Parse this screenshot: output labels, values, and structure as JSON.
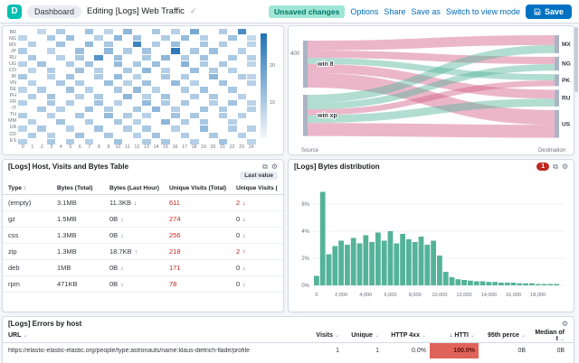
{
  "header": {
    "space_initial": "D",
    "breadcrumb": "Dashboard",
    "title": "Editing [Logs] Web Traffic",
    "badge": "Unsaved changes",
    "actions": [
      "Options",
      "Share",
      "Save as",
      "Switch to view mode"
    ],
    "save_label": "Save"
  },
  "panels": {
    "host_table": {
      "title": "[Logs] Host, Visits and Bytes Table",
      "tag": "Last value",
      "columns": [
        "Type",
        "Bytes (Total)",
        "Bytes (Last Hour)",
        "Unique Visits (Total)",
        "Unique Visits (Last Hour)"
      ],
      "rows": [
        {
          "type": "(empty)",
          "bytes_total": "3.1MB",
          "bytes_last_hour": "11.3KB",
          "bytes_trend": "down",
          "unique_total": "611",
          "unique_last_hour": "2",
          "unique_trend": "down"
        },
        {
          "type": "gz",
          "bytes_total": "1.5MB",
          "bytes_last_hour": "0B",
          "bytes_trend": "down",
          "unique_total": "274",
          "unique_last_hour": "0",
          "unique_trend": "down"
        },
        {
          "type": "css",
          "bytes_total": "1.3MB",
          "bytes_last_hour": "0B",
          "bytes_trend": "down",
          "unique_total": "256",
          "unique_last_hour": "0",
          "unique_trend": "down"
        },
        {
          "type": "zip",
          "bytes_total": "1.3MB",
          "bytes_last_hour": "18.7KB",
          "bytes_trend": "up",
          "unique_total": "218",
          "unique_last_hour": "2",
          "unique_trend": "up"
        },
        {
          "type": "deb",
          "bytes_total": "1MB",
          "bytes_last_hour": "0B",
          "bytes_trend": "down",
          "unique_total": "171",
          "unique_last_hour": "0",
          "unique_trend": "down"
        },
        {
          "type": "rpm",
          "bytes_total": "471KB",
          "bytes_last_hour": "0B",
          "bytes_trend": "down",
          "unique_total": "78",
          "unique_last_hour": "0",
          "unique_trend": "down"
        }
      ]
    },
    "bytes_distribution": {
      "title": "[Logs] Bytes distribution",
      "badge": "1"
    },
    "errors_by_host": {
      "title": "[Logs] Errors by host",
      "columns": [
        "URL",
        "Visits",
        "Unique",
        "HTTP 4xx",
        "HTTI",
        "95th perce",
        "Median of t"
      ],
      "sorted_column": "HTTI",
      "rows": [
        [
          "https://elastic-elastic-elastic.org/people/type:astronauts/name:klaus-dietrich-flade/profile",
          "1",
          "1",
          "0.0%",
          "100.0%",
          "0B",
          "0B"
        ]
      ]
    }
  },
  "chart_data": [
    {
      "type": "heatmap",
      "x": [
        0,
        1,
        2,
        3,
        4,
        5,
        6,
        7,
        8,
        9,
        10,
        11,
        12,
        13,
        14,
        15,
        16,
        17,
        18,
        19,
        20,
        21,
        22,
        23,
        24
      ],
      "categories": [
        "BR",
        "NG",
        "MX",
        "JP",
        "RU",
        "UG",
        "CO",
        "IR",
        "VN",
        "DE",
        "PH",
        "FR",
        "IT",
        "TH",
        "MM",
        "UA",
        "CD",
        "ES"
      ],
      "max": 28,
      "legend_ticks": [
        20,
        10
      ],
      "values": [
        [
          0,
          0,
          4,
          0,
          7,
          0,
          0,
          9,
          0,
          5,
          0,
          12,
          0,
          0,
          8,
          0,
          6,
          0,
          15,
          0,
          0,
          7,
          0,
          22,
          0
        ],
        [
          5,
          0,
          0,
          8,
          0,
          10,
          0,
          0,
          6,
          0,
          12,
          0,
          9,
          0,
          0,
          7,
          0,
          11,
          0,
          6,
          0,
          0,
          9,
          0,
          4
        ],
        [
          0,
          6,
          0,
          0,
          9,
          0,
          0,
          11,
          0,
          8,
          0,
          0,
          24,
          0,
          7,
          0,
          10,
          0,
          0,
          8,
          0,
          7,
          0,
          0,
          5
        ],
        [
          7,
          0,
          0,
          5,
          0,
          0,
          10,
          0,
          0,
          12,
          0,
          7,
          0,
          9,
          0,
          0,
          26,
          0,
          8,
          0,
          10,
          0,
          0,
          6,
          0
        ],
        [
          0,
          8,
          0,
          0,
          6,
          0,
          8,
          0,
          20,
          0,
          10,
          0,
          0,
          8,
          0,
          12,
          0,
          7,
          0,
          9,
          0,
          0,
          8,
          0,
          6
        ],
        [
          6,
          0,
          9,
          0,
          0,
          7,
          0,
          9,
          0,
          0,
          11,
          0,
          8,
          0,
          10,
          0,
          0,
          13,
          0,
          7,
          0,
          8,
          0,
          0,
          5
        ],
        [
          0,
          5,
          0,
          7,
          0,
          0,
          9,
          0,
          6,
          0,
          0,
          8,
          0,
          12,
          0,
          6,
          0,
          0,
          10,
          0,
          7,
          0,
          6,
          0,
          0
        ],
        [
          8,
          0,
          0,
          6,
          0,
          9,
          0,
          0,
          7,
          0,
          11,
          0,
          6,
          0,
          0,
          8,
          0,
          7,
          0,
          0,
          12,
          0,
          0,
          7,
          5
        ],
        [
          0,
          6,
          0,
          0,
          8,
          0,
          7,
          0,
          0,
          10,
          0,
          6,
          0,
          9,
          0,
          0,
          11,
          0,
          6,
          0,
          0,
          9,
          0,
          0,
          6
        ],
        [
          5,
          0,
          7,
          0,
          0,
          9,
          0,
          6,
          0,
          0,
          8,
          0,
          11,
          0,
          6,
          0,
          0,
          7,
          0,
          9,
          0,
          0,
          8,
          0,
          0
        ],
        [
          0,
          7,
          0,
          9,
          0,
          0,
          6,
          0,
          8,
          0,
          0,
          12,
          0,
          6,
          0,
          9,
          0,
          0,
          7,
          0,
          8,
          0,
          0,
          6,
          0
        ],
        [
          6,
          0,
          0,
          8,
          0,
          7,
          0,
          0,
          9,
          0,
          6,
          0,
          0,
          11,
          0,
          7,
          0,
          8,
          0,
          0,
          6,
          0,
          9,
          0,
          5
        ],
        [
          0,
          0,
          8,
          0,
          6,
          0,
          0,
          9,
          0,
          7,
          0,
          0,
          8,
          0,
          12,
          0,
          6,
          0,
          0,
          9,
          0,
          7,
          0,
          0,
          6
        ],
        [
          7,
          0,
          0,
          6,
          0,
          0,
          8,
          0,
          0,
          11,
          0,
          7,
          0,
          6,
          0,
          0,
          9,
          0,
          8,
          0,
          0,
          7,
          0,
          6,
          0
        ],
        [
          0,
          6,
          0,
          0,
          9,
          0,
          0,
          7,
          0,
          0,
          8,
          0,
          6,
          0,
          0,
          12,
          0,
          7,
          0,
          8,
          0,
          0,
          6,
          0,
          0
        ],
        [
          5,
          0,
          8,
          0,
          0,
          6,
          0,
          0,
          9,
          0,
          0,
          7,
          0,
          8,
          0,
          0,
          6,
          0,
          0,
          11,
          0,
          0,
          7,
          0,
          6
        ],
        [
          0,
          7,
          0,
          6,
          0,
          0,
          9,
          0,
          0,
          8,
          0,
          0,
          6,
          0,
          9,
          0,
          0,
          7,
          0,
          0,
          8,
          0,
          0,
          6,
          0
        ],
        [
          6,
          0,
          0,
          8,
          0,
          7,
          0,
          6,
          0,
          0,
          9,
          0,
          0,
          7,
          0,
          8,
          0,
          0,
          6,
          0,
          0,
          9,
          0,
          0,
          5
        ]
      ]
    },
    {
      "type": "sankey",
      "sources": [
        "win 8",
        "win xp"
      ],
      "destinations": [
        "MX",
        "NG",
        "PK",
        "RU",
        "US"
      ],
      "flows": [
        {
          "source": "win 8",
          "destination": "MX",
          "value": 120,
          "color": "#d36086"
        },
        {
          "source": "win 8",
          "destination": "NG",
          "value": 90,
          "color": "#d36086"
        },
        {
          "source": "win 8",
          "destination": "PK",
          "value": 75,
          "color": "#54b399"
        },
        {
          "source": "win 8",
          "destination": "RU",
          "value": 110,
          "color": "#d36086"
        },
        {
          "source": "win 8",
          "destination": "US",
          "value": 180,
          "color": "#d36086"
        },
        {
          "source": "win xp",
          "destination": "MX",
          "value": 100,
          "color": "#54b399"
        },
        {
          "source": "win xp",
          "destination": "NG",
          "value": 80,
          "color": "#54b399"
        },
        {
          "source": "win xp",
          "destination": "PK",
          "value": 70,
          "color": "#d36086"
        },
        {
          "source": "win xp",
          "destination": "RU",
          "value": 95,
          "color": "#54b399"
        },
        {
          "source": "win xp",
          "destination": "US",
          "value": 160,
          "color": "#d36086"
        }
      ],
      "axis_left_tick": "400",
      "axis_bottom_left": "Source",
      "axis_bottom_right": "Destination"
    },
    {
      "type": "bar",
      "bin_start": 0,
      "bin_width": 500,
      "values_percent": [
        0.7,
        6.9,
        2.3,
        2.9,
        3.3,
        3.0,
        3.5,
        3.1,
        3.7,
        3.2,
        3.9,
        3.3,
        4.0,
        3.1,
        3.8,
        3.4,
        3.2,
        3.6,
        3.0,
        3.3,
        2.2,
        1.0,
        0.6,
        0.45,
        0.4,
        0.35,
        0.3,
        0.3,
        0.25,
        0.25,
        0.2,
        0.2,
        0.2,
        0.15,
        0.15,
        0.15,
        0.1,
        0.1,
        0.1,
        0.1
      ],
      "yticks": [
        0,
        2,
        4,
        6
      ],
      "xticks": [
        "0",
        "2,000",
        "4,000",
        "6,000",
        "8,000",
        "10,000",
        "12,000",
        "14,000",
        "16,000",
        "18,000"
      ]
    }
  ],
  "colors": {
    "accent": "#0071c2",
    "link": "#006bb8",
    "heatmap_blue": "#2171b5",
    "bar_green": "#54b399",
    "flow_pink": "#d36086",
    "flow_teal": "#54b399",
    "value_red": "#bd271e",
    "error_cell_bg": "#e0635a",
    "error_cell_text": "#5c1008"
  }
}
